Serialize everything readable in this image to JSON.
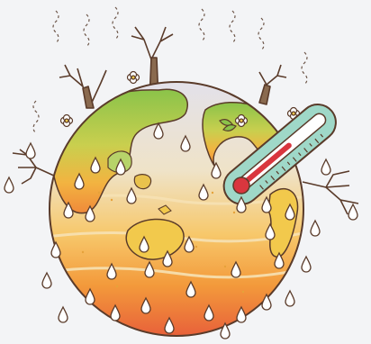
{
  "illustration": {
    "subject": "global-warming-earth",
    "colors": {
      "background": "#f3f4f6",
      "outline": "#5a3b2a",
      "land_green": "#8bc34a",
      "land_yellow": "#f2c94c",
      "ocean_top": "#d9d7e3",
      "heat_orange": "#f39a3b",
      "heat_red": "#e8613a",
      "thermometer_body": "#9fd8c8",
      "mercury": "#d9363e",
      "droplet_fill": "#ffffff",
      "tree_trunk": "#8a6a4f"
    },
    "icons": [
      "earth-icon",
      "thermometer-icon",
      "dead-tree-icon",
      "flower-icon",
      "sweat-drop-icon",
      "heat-wave-icon"
    ]
  }
}
